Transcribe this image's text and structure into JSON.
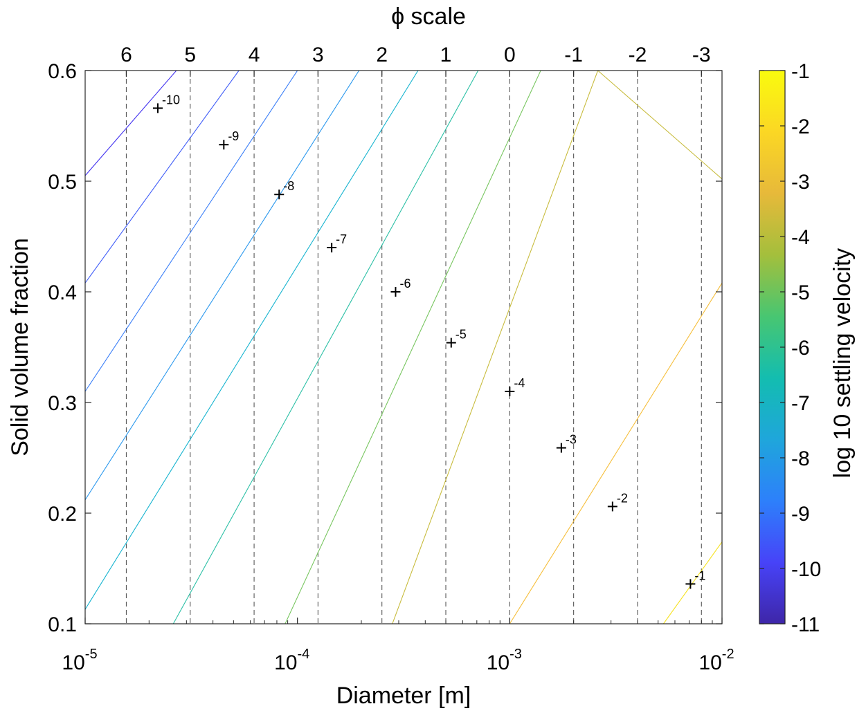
{
  "chart_data": {
    "type": "contour",
    "title": "",
    "xlabel": "Diameter [m]",
    "ylabel": "Solid volume fraction",
    "top_axis_label": "ϕ scale",
    "colorbar_label": "log 10 settling velocity",
    "x_scale": "log",
    "xlim": [
      1e-05,
      0.01
    ],
    "ylim": [
      0.1,
      0.6
    ],
    "x_ticks": [
      {
        "value": 1e-05,
        "base": "10",
        "exp": "-5"
      },
      {
        "value": 0.0001,
        "base": "10",
        "exp": "-4"
      },
      {
        "value": 0.001,
        "base": "10",
        "exp": "-3"
      },
      {
        "value": 0.01,
        "base": "10",
        "exp": "-2"
      }
    ],
    "y_ticks": [
      "0.1",
      "0.2",
      "0.3",
      "0.4",
      "0.5",
      "0.6"
    ],
    "phi_ticks": [
      "6",
      "5",
      "4",
      "3",
      "2",
      "1",
      "0",
      "-1",
      "-2",
      "-3"
    ],
    "phi_gridlines_dashed": true,
    "colorbar": {
      "range": [
        -11,
        -1
      ],
      "ticks": [
        "-1",
        "-2",
        "-3",
        "-4",
        "-5",
        "-6",
        "-7",
        "-8",
        "-9",
        "-10",
        "-11"
      ],
      "colormap": [
        "#3e26a8",
        "#4743f8",
        "#2d80fb",
        "#1fa6db",
        "#13bdb0",
        "#48c671",
        "#a4bf3c",
        "#e7b93a",
        "#fbd724",
        "#f9fb0e"
      ]
    },
    "contour_levels": [
      {
        "level": -10,
        "label": "-10",
        "color": "#4434f0",
        "points": [
          [
            1e-05,
            0.505
          ],
          [
            2.69e-05,
            0.6
          ]
        ]
      },
      {
        "level": -9,
        "label": "-9",
        "color": "#3f5cf8",
        "points": [
          [
            1e-05,
            0.408
          ],
          [
            5.3e-05,
            0.6
          ]
        ]
      },
      {
        "level": -8,
        "label": "-8",
        "color": "#3a7ef8",
        "points": [
          [
            1e-05,
            0.31
          ],
          [
            0.0001,
            0.6
          ]
        ]
      },
      {
        "level": -7,
        "label": "-7",
        "color": "#2a98ee",
        "points": [
          [
            1e-05,
            0.212
          ],
          [
            0.000195,
            0.6
          ]
        ]
      },
      {
        "level": -6,
        "label": "-6",
        "color": "#17b4d0",
        "points": [
          [
            1e-05,
            0.113
          ],
          [
            0.00037,
            0.6
          ]
        ]
      },
      {
        "level": -5,
        "label": "-5",
        "color": "#2cc0a6",
        "points": [
          [
            2.6e-05,
            0.1
          ],
          [
            0.00071,
            0.6
          ]
        ]
      },
      {
        "level": -4,
        "label": "-4",
        "color": "#78c660",
        "points": [
          [
            8.75e-05,
            0.1
          ],
          [
            0.0014,
            0.6
          ]
        ]
      },
      {
        "level": -3,
        "label": "-3",
        "color": "#c8bc3e",
        "points": [
          [
            0.00028,
            0.1
          ],
          [
            0.0026,
            0.6
          ],
          [
            0.01,
            0.502
          ]
        ]
      },
      {
        "level": -2,
        "label": "-2",
        "color": "#f6bf3c",
        "points": [
          [
            0.001,
            0.1
          ],
          [
            0.01,
            0.408
          ]
        ]
      },
      {
        "level": -1,
        "label": "-1",
        "color": "#f6e21e",
        "points": [
          [
            0.0053,
            0.1
          ],
          [
            0.01,
            0.174
          ]
        ]
      }
    ],
    "markers": [
      {
        "label": "-10",
        "x": 2.2e-05,
        "y": 0.566
      },
      {
        "label": "-9",
        "x": 4.5e-05,
        "y": 0.533
      },
      {
        "label": "-8",
        "x": 8.2e-05,
        "y": 0.488
      },
      {
        "label": "-7",
        "x": 0.000145,
        "y": 0.44
      },
      {
        "label": "-6",
        "x": 0.00029,
        "y": 0.4
      },
      {
        "label": "-5",
        "x": 0.00053,
        "y": 0.354
      },
      {
        "label": "-4",
        "x": 0.001,
        "y": 0.31
      },
      {
        "label": "-3",
        "x": 0.00175,
        "y": 0.259
      },
      {
        "label": "-2",
        "x": 0.00305,
        "y": 0.206
      },
      {
        "label": "-1",
        "x": 0.0071,
        "y": 0.136
      }
    ]
  }
}
